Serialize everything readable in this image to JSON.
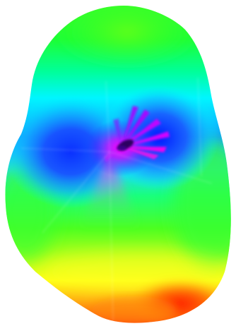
{
  "image": {
    "subject": "color-mapped-3d-surface",
    "background_color": "#ffffff",
    "colormap": [
      "#ff0000",
      "#ff8000",
      "#ffff00",
      "#80ff00",
      "#00ff00",
      "#00ffff",
      "#0080ff",
      "#0000ff",
      "#8000ff",
      "#ff00ff"
    ],
    "palette": {
      "green": "#17ff22",
      "yellow_green": "#a8ff22",
      "yellow": "#ffff12",
      "orange": "#ff9f10",
      "red": "#ff3008",
      "cyan": "#00fbff",
      "light_blue": "#25b8ff",
      "blue": "#0a42ff",
      "deep_blue": "#0016ff",
      "violet": "#8b16ff",
      "magenta": "#ff00f0",
      "dark_core": "#1a0050"
    }
  }
}
